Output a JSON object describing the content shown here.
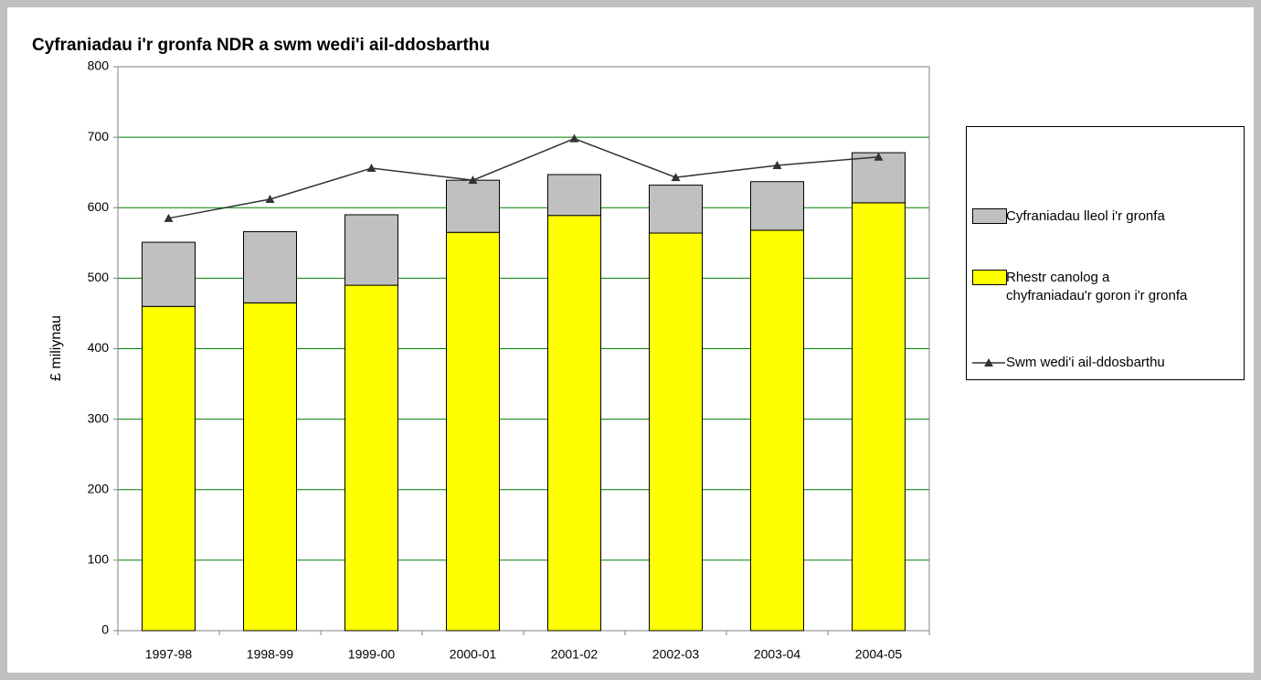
{
  "chart_data": {
    "type": "bar",
    "title": "Cyfraniadau i'r gronfa NDR a swm wedi'i ail-ddosbarthu",
    "ylabel": "£ miliynau",
    "categories": [
      "1997-98",
      "1998-99",
      "1999-00",
      "2000-01",
      "2001-02",
      "2002-03",
      "2003-04",
      "2004-05"
    ],
    "series": [
      {
        "name": "Cyfraniadau lleol i'r gronfa",
        "type": "bar",
        "color": "#c0c0c0",
        "values": [
          91,
          101,
          100,
          74,
          58,
          68,
          69,
          71
        ]
      },
      {
        "name": "Rhestr canolog a chyfraniadau'r goron i'r gronfa",
        "type": "bar",
        "color": "#ffff00",
        "values": [
          460,
          465,
          490,
          565,
          589,
          564,
          568,
          607
        ]
      },
      {
        "name": "Swm wedi'i ail-ddosbarthu",
        "type": "line",
        "color": "#333333",
        "values": [
          585,
          612,
          656,
          639,
          698,
          643,
          660,
          672
        ]
      }
    ],
    "stacked": true,
    "ylim": [
      0,
      800
    ],
    "yticks": [
      0,
      100,
      200,
      300,
      400,
      500,
      600,
      700,
      800
    ],
    "grid": true,
    "legend": "right"
  }
}
